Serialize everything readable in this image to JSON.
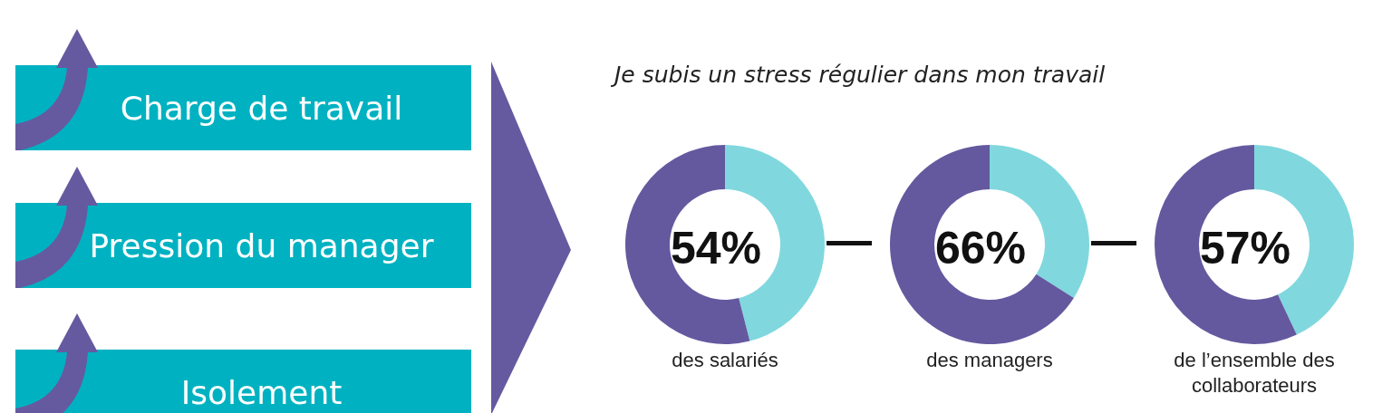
{
  "chart_data": [
    {
      "type": "other",
      "annotations": [
        "Charge de travail",
        "Pression du manager",
        "Isolement"
      ]
    },
    {
      "type": "donut",
      "title": "Je subis un stress régulier dans mon travail",
      "categories": [
        null,
        null
      ],
      "values": [
        46,
        54
      ],
      "colors": [
        "#80d8de",
        "#64599f"
      ],
      "value_labels": [
        null,
        "54%"
      ],
      "xlabel": "des salariés"
    },
    {
      "type": "donut",
      "categories": [
        null,
        null
      ],
      "values": [
        34,
        66
      ],
      "colors": [
        "#80d8de",
        "#64599f"
      ],
      "value_labels": [
        null,
        "66%"
      ],
      "xlabel": "des managers"
    },
    {
      "type": "donut",
      "categories": [
        null,
        null
      ],
      "values": [
        43,
        57
      ],
      "colors": [
        "#80d8de",
        "#64599f"
      ],
      "value_labels": [
        null,
        "57%"
      ],
      "xlabel": "de l’ensemble des collaborateurs"
    }
  ]
}
